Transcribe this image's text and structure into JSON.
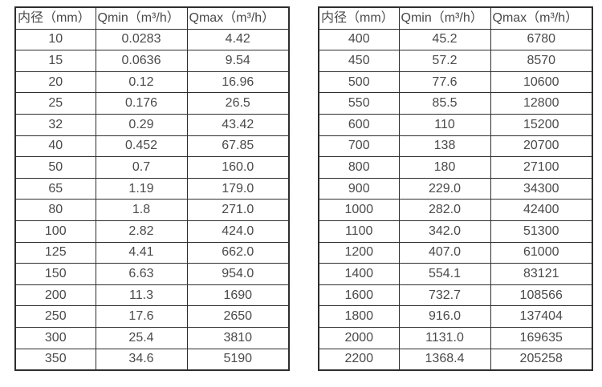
{
  "page": {
    "background_color": "#ffffff",
    "text_color": "#4a4a4a",
    "border_color": "#2e2e2e"
  },
  "chart_data": [
    {
      "type": "table",
      "title": "",
      "columns": [
        "内径（mm）",
        "Qmin（m³/h）",
        "Qmax（m³/h）"
      ],
      "rows": [
        [
          "10",
          "0.0283",
          "4.42"
        ],
        [
          "15",
          "0.0636",
          "9.54"
        ],
        [
          "20",
          "0.12",
          "16.96"
        ],
        [
          "25",
          "0.176",
          "26.5"
        ],
        [
          "32",
          "0.29",
          "43.42"
        ],
        [
          "40",
          "0.452",
          "67.85"
        ],
        [
          "50",
          "0.7",
          "160.0"
        ],
        [
          "65",
          "1.19",
          "179.0"
        ],
        [
          "80",
          "1.8",
          "271.0"
        ],
        [
          "100",
          "2.82",
          "424.0"
        ],
        [
          "125",
          "4.41",
          "662.0"
        ],
        [
          "150",
          "6.63",
          "954.0"
        ],
        [
          "200",
          "11.3",
          "1690"
        ],
        [
          "250",
          "17.6",
          "2650"
        ],
        [
          "300",
          "25.4",
          "3810"
        ],
        [
          "350",
          "34.6",
          "5190"
        ]
      ]
    },
    {
      "type": "table",
      "title": "",
      "columns": [
        "内径（mm）",
        "Qmin（m³/h）",
        "Qmax（m³/h）"
      ],
      "rows": [
        [
          "400",
          "45.2",
          "6780"
        ],
        [
          "450",
          "57.2",
          "8570"
        ],
        [
          "500",
          "77.6",
          "10600"
        ],
        [
          "550",
          "85.5",
          "12800"
        ],
        [
          "600",
          "110",
          "15200"
        ],
        [
          "700",
          "138",
          "20700"
        ],
        [
          "800",
          "180",
          "27100"
        ],
        [
          "900",
          "229.0",
          "34300"
        ],
        [
          "1000",
          "282.0",
          "42400"
        ],
        [
          "1100",
          "342.0",
          "51300"
        ],
        [
          "1200",
          "407.0",
          "61000"
        ],
        [
          "1400",
          "554.1",
          "83121"
        ],
        [
          "1600",
          "732.7",
          "108566"
        ],
        [
          "1800",
          "916.0",
          "137404"
        ],
        [
          "2000",
          "1131.0",
          "169635"
        ],
        [
          "2200",
          "1368.4",
          "205258"
        ]
      ]
    }
  ]
}
